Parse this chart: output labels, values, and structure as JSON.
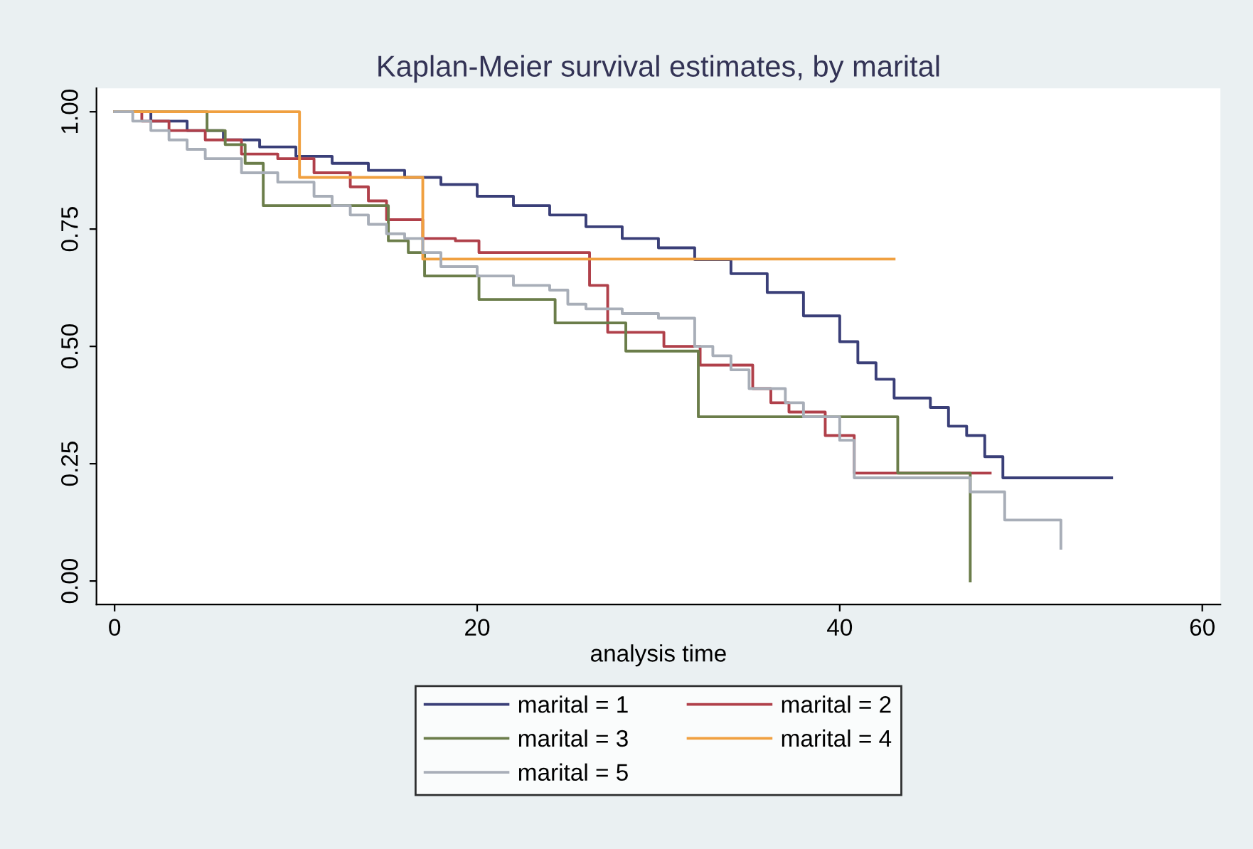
{
  "chart_data": {
    "type": "step",
    "title": "Kaplan-Meier survival estimates, by marital",
    "xlabel": "analysis time",
    "xlim": [
      -1,
      61
    ],
    "xticks": [
      0,
      20,
      40,
      60
    ],
    "ylim": [
      -0.05,
      1.05
    ],
    "yticks": [
      {
        "value": 0,
        "label": "0.00"
      },
      {
        "value": 0.25,
        "label": "0.25"
      },
      {
        "value": 0.5,
        "label": "0.50"
      },
      {
        "value": 0.75,
        "label": "0.75"
      },
      {
        "value": 1,
        "label": "1.00"
      }
    ],
    "grid": false,
    "legend": "bottom",
    "line_style": "solid",
    "marker": "none",
    "series": [
      {
        "name": "marital = 1",
        "color": "#3a3f78",
        "x": [
          0,
          2,
          4,
          6,
          8,
          10,
          12,
          14,
          16,
          18,
          20,
          22,
          24,
          26,
          28,
          30,
          32,
          34,
          36,
          38,
          40,
          41,
          42,
          43,
          45,
          46,
          47,
          48,
          49,
          55
        ],
        "values": [
          1.0,
          0.98,
          0.96,
          0.94,
          0.925,
          0.905,
          0.89,
          0.875,
          0.86,
          0.845,
          0.82,
          0.8,
          0.78,
          0.755,
          0.73,
          0.71,
          0.685,
          0.655,
          0.615,
          0.565,
          0.51,
          0.465,
          0.43,
          0.39,
          0.37,
          0.33,
          0.31,
          0.265,
          0.22,
          0.22
        ]
      },
      {
        "name": "marital = 2",
        "color": "#b0404a",
        "x": [
          0,
          1.5,
          3,
          5,
          7,
          9,
          11,
          13,
          14,
          15,
          17,
          18.8,
          20.1,
          26.2,
          27.2,
          30.3,
          32.3,
          35.2,
          36.2,
          37.2,
          39.2,
          40.8,
          48.3
        ],
        "values": [
          1.0,
          0.98,
          0.96,
          0.94,
          0.91,
          0.9,
          0.87,
          0.84,
          0.81,
          0.77,
          0.73,
          0.725,
          0.7,
          0.63,
          0.53,
          0.5,
          0.46,
          0.41,
          0.38,
          0.36,
          0.31,
          0.23,
          0.23
        ]
      },
      {
        "name": "marital = 3",
        "color": "#6b7d4a",
        "x": [
          0,
          5.1,
          6.1,
          7.2,
          8.2,
          15.1,
          16.2,
          17.1,
          20.1,
          24.3,
          28.2,
          32.2,
          43.2,
          47.2
        ],
        "values": [
          1.0,
          0.96,
          0.93,
          0.89,
          0.8,
          0.725,
          0.7,
          0.65,
          0.6,
          0.55,
          0.49,
          0.35,
          0.23,
          0.0
        ]
      },
      {
        "name": "marital = 4",
        "color": "#f0a040",
        "x": [
          0,
          10.2,
          17,
          43
        ],
        "values": [
          1.0,
          0.86,
          0.686,
          0.686
        ]
      },
      {
        "name": "marital = 5",
        "color": "#a8aeb8",
        "x": [
          0,
          1,
          2,
          3,
          4,
          5,
          7,
          9,
          11,
          12,
          13,
          14,
          15,
          16,
          17,
          18,
          20,
          22,
          24,
          25,
          26,
          28,
          30,
          32,
          33,
          34,
          35,
          37,
          38,
          40,
          40.8,
          47.2,
          49.1,
          52.2
        ],
        "values": [
          1.0,
          0.98,
          0.96,
          0.94,
          0.92,
          0.9,
          0.87,
          0.85,
          0.82,
          0.8,
          0.78,
          0.76,
          0.74,
          0.73,
          0.7,
          0.67,
          0.65,
          0.63,
          0.62,
          0.59,
          0.58,
          0.57,
          0.56,
          0.5,
          0.48,
          0.45,
          0.41,
          0.38,
          0.35,
          0.3,
          0.22,
          0.19,
          0.13,
          0.07
        ]
      }
    ]
  }
}
